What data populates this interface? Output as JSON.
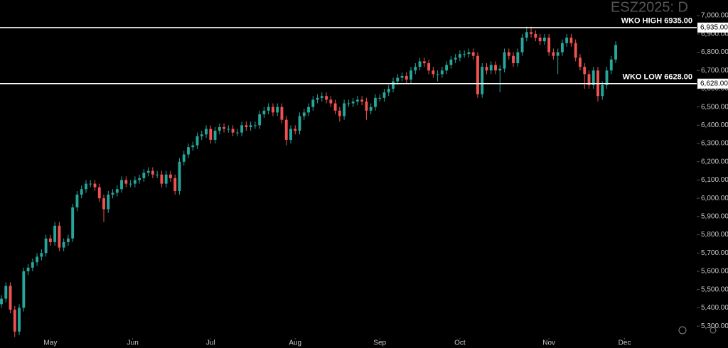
{
  "chart_data": {
    "type": "candlestick",
    "title": "ESZ2025: D",
    "up_color": "#26a69a",
    "down_color": "#ef5350",
    "open": [
      5420,
      5450,
      5520,
      5390,
      5270,
      5400,
      5600,
      5620,
      5650,
      5680,
      5700,
      5780,
      5760,
      5850,
      5730,
      5760,
      5780,
      5950,
      6020,
      6050,
      6080,
      6080,
      6060,
      6000,
      5940,
      6020,
      6030,
      6050,
      6100,
      6080,
      6080,
      6100,
      6110,
      6140,
      6150,
      6130,
      6130,
      6080,
      6130,
      6110,
      6040,
      6200,
      6240,
      6280,
      6290,
      6340,
      6350,
      6380,
      6320,
      6370,
      6390,
      6380,
      6380,
      6360,
      6360,
      6400,
      6390,
      6400,
      6400,
      6460,
      6480,
      6500,
      6470,
      6500,
      6430,
      6320,
      6380,
      6370,
      6450,
      6470,
      6500,
      6540,
      6550,
      6560,
      6540,
      6520,
      6480,
      6450,
      6520,
      6520,
      6530,
      6540,
      6530,
      6480,
      6500,
      6550,
      6550,
      6580,
      6600,
      6640,
      6660,
      6670,
      6650,
      6700,
      6720,
      6750,
      6740,
      6700,
      6680,
      6680,
      6700,
      6730,
      6760,
      6770,
      6790,
      6790,
      6800,
      6780,
      6570,
      6720,
      6700,
      6730,
      6700,
      6710,
      6800,
      6780,
      6740,
      6800,
      6880,
      6910,
      6900,
      6880,
      6860,
      6880,
      6800,
      6780,
      6800,
      6850,
      6880,
      6850,
      6770,
      6720,
      6680,
      6620,
      6700,
      6560,
      6620,
      6700,
      6760
    ],
    "high": [
      5470,
      5540,
      5540,
      5410,
      5420,
      5620,
      5640,
      5670,
      5700,
      5720,
      5800,
      5800,
      5870,
      5870,
      5780,
      5800,
      5970,
      6040,
      6070,
      6100,
      6100,
      6100,
      6080,
      6020,
      6040,
      6050,
      6070,
      6120,
      6120,
      6100,
      6120,
      6130,
      6160,
      6170,
      6170,
      6150,
      6150,
      6150,
      6150,
      6130,
      6220,
      6260,
      6300,
      6310,
      6360,
      6370,
      6400,
      6400,
      6390,
      6410,
      6410,
      6400,
      6400,
      6380,
      6420,
      6420,
      6420,
      6420,
      6480,
      6500,
      6520,
      6520,
      6520,
      6520,
      6450,
      6400,
      6400,
      6470,
      6490,
      6520,
      6560,
      6570,
      6580,
      6580,
      6560,
      6540,
      6500,
      6540,
      6540,
      6550,
      6560,
      6560,
      6550,
      6520,
      6570,
      6570,
      6600,
      6620,
      6660,
      6680,
      6690,
      6690,
      6720,
      6740,
      6770,
      6770,
      6760,
      6720,
      6700,
      6720,
      6750,
      6780,
      6790,
      6810,
      6810,
      6820,
      6820,
      6800,
      6740,
      6740,
      6750,
      6750,
      6730,
      6820,
      6820,
      6800,
      6820,
      6900,
      6940,
      6940,
      6920,
      6900,
      6900,
      6900,
      6820,
      6820,
      6870,
      6900,
      6900,
      6870,
      6790,
      6740,
      6700,
      6720,
      6720,
      6640,
      6720,
      6780,
      6860
    ],
    "low": [
      5400,
      5430,
      5370,
      5240,
      5250,
      5380,
      5580,
      5600,
      5630,
      5660,
      5680,
      5740,
      5740,
      5710,
      5710,
      5740,
      5760,
      5930,
      6000,
      6030,
      6060,
      6040,
      5980,
      5870,
      5920,
      6000,
      6010,
      6030,
      6060,
      6060,
      6060,
      6080,
      6090,
      6120,
      6110,
      6110,
      6060,
      6060,
      6090,
      6020,
      6020,
      6180,
      6220,
      6260,
      6270,
      6320,
      6330,
      6300,
      6300,
      6350,
      6360,
      6360,
      6340,
      6340,
      6340,
      6370,
      6370,
      6380,
      6380,
      6440,
      6460,
      6450,
      6450,
      6410,
      6290,
      6300,
      6350,
      6350,
      6430,
      6450,
      6480,
      6520,
      6530,
      6520,
      6500,
      6460,
      6420,
      6430,
      6500,
      6500,
      6510,
      6510,
      6430,
      6460,
      6480,
      6530,
      6530,
      6560,
      6580,
      6620,
      6640,
      6630,
      6630,
      6680,
      6700,
      6720,
      6680,
      6660,
      6640,
      6660,
      6680,
      6710,
      6740,
      6750,
      6770,
      6770,
      6760,
      6550,
      6550,
      6680,
      6680,
      6680,
      6580,
      6690,
      6760,
      6720,
      6720,
      6780,
      6860,
      6880,
      6860,
      6840,
      6840,
      6780,
      6760,
      6680,
      6780,
      6830,
      6830,
      6750,
      6700,
      6600,
      6600,
      6600,
      6530,
      6540,
      6600,
      6680,
      6740
    ],
    "close": [
      5450,
      5520,
      5390,
      5270,
      5400,
      5600,
      5620,
      5650,
      5680,
      5700,
      5780,
      5760,
      5850,
      5730,
      5760,
      5780,
      5950,
      6020,
      6050,
      6080,
      6080,
      6060,
      6000,
      5940,
      6020,
      6030,
      6050,
      6100,
      6080,
      6080,
      6100,
      6110,
      6140,
      6150,
      6130,
      6130,
      6080,
      6130,
      6110,
      6040,
      6200,
      6240,
      6280,
      6290,
      6340,
      6350,
      6380,
      6320,
      6370,
      6390,
      6380,
      6380,
      6360,
      6360,
      6400,
      6390,
      6400,
      6400,
      6460,
      6480,
      6500,
      6470,
      6500,
      6430,
      6320,
      6380,
      6370,
      6450,
      6470,
      6500,
      6540,
      6550,
      6560,
      6540,
      6520,
      6480,
      6450,
      6520,
      6520,
      6530,
      6540,
      6530,
      6480,
      6500,
      6550,
      6550,
      6580,
      6600,
      6640,
      6660,
      6670,
      6650,
      6700,
      6720,
      6750,
      6740,
      6700,
      6680,
      6680,
      6700,
      6730,
      6760,
      6770,
      6790,
      6790,
      6800,
      6780,
      6570,
      6720,
      6700,
      6730,
      6700,
      6710,
      6800,
      6780,
      6740,
      6800,
      6880,
      6910,
      6900,
      6880,
      6860,
      6880,
      6800,
      6780,
      6800,
      6850,
      6880,
      6850,
      6770,
      6720,
      6680,
      6620,
      6700,
      6560,
      6620,
      6700,
      6760,
      6840
    ],
    "xlim": [
      -0.32,
      156.2
    ],
    "xticks": [
      {
        "value": 11,
        "label": "May"
      },
      {
        "value": 29.5,
        "label": "Jun"
      },
      {
        "value": 47,
        "label": "Jul"
      },
      {
        "value": 66,
        "label": "Aug"
      },
      {
        "value": 85,
        "label": "Sep"
      },
      {
        "value": 103,
        "label": "Oct"
      },
      {
        "value": 123,
        "label": "Nov"
      },
      {
        "value": 140,
        "label": "Dec"
      }
    ],
    "ylim": [
      5180,
      7086
    ],
    "yticks": [
      {
        "value": 5300,
        "label": "5,300.00"
      },
      {
        "value": 5400,
        "label": "5,400.00"
      },
      {
        "value": 5500,
        "label": "5,500.00"
      },
      {
        "value": 5600,
        "label": "5,600.00"
      },
      {
        "value": 5700,
        "label": "5,700.00"
      },
      {
        "value": 5800,
        "label": "5,800.00"
      },
      {
        "value": 5900,
        "label": "5,900.00"
      },
      {
        "value": 6000,
        "label": "6,000.00"
      },
      {
        "value": 6100,
        "label": "6,100.00"
      },
      {
        "value": 6200,
        "label": "6,200.00"
      },
      {
        "value": 6300,
        "label": "6,300.00"
      },
      {
        "value": 6400,
        "label": "6,400.00"
      },
      {
        "value": 6500,
        "label": "6,500.00"
      },
      {
        "value": 6600,
        "label": "6,600.00"
      },
      {
        "value": 6700,
        "label": "6,700.00"
      },
      {
        "value": 6800,
        "label": "6,800.00"
      },
      {
        "value": 6900,
        "label": "6,900.00"
      },
      {
        "value": 7000,
        "label": "7,000.00"
      }
    ],
    "hlines": [
      {
        "value": 6935,
        "label": "WKO HIGH 6935.00",
        "price_label": "6,935.00"
      },
      {
        "value": 6628,
        "label": "WKO LOW 6628.00",
        "price_label": "6,628.00"
      }
    ]
  }
}
